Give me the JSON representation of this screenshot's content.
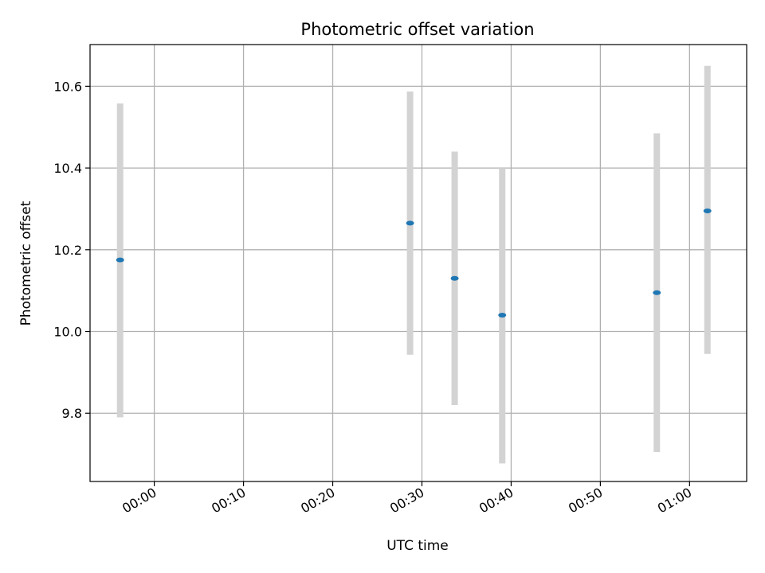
{
  "chart_data": {
    "type": "scatter",
    "title": "Photometric offset variation",
    "xlabel": "UTC time",
    "ylabel": "Photometric offset",
    "x_tick_labels": [
      "00:00",
      "00:10",
      "00:20",
      "00:30",
      "00:40",
      "00:50",
      "01:00"
    ],
    "x_tick_minutes": [
      0,
      10,
      20,
      30,
      40,
      50,
      60
    ],
    "xlim_minutes": [
      -7.2,
      66.4
    ],
    "y_tick_labels": [
      "9.8",
      "10.0",
      "10.2",
      "10.4",
      "10.6"
    ],
    "y_tick_values": [
      9.8,
      10.0,
      10.2,
      10.4,
      10.6
    ],
    "ylim": [
      9.633,
      10.702
    ],
    "grid": true,
    "points": [
      {
        "time": "23:56:10",
        "minutes": -3.83,
        "y": 10.175,
        "yerr_low": 9.79,
        "yerr_high": 10.558
      },
      {
        "time": "00:28:40",
        "minutes": 28.67,
        "y": 10.265,
        "yerr_low": 9.943,
        "yerr_high": 10.587
      },
      {
        "time": "00:33:40",
        "minutes": 33.67,
        "y": 10.13,
        "yerr_low": 9.82,
        "yerr_high": 10.44
      },
      {
        "time": "00:39:00",
        "minutes": 39.0,
        "y": 10.04,
        "yerr_low": 9.677,
        "yerr_high": 10.4
      },
      {
        "time": "00:56:20",
        "minutes": 56.33,
        "y": 10.095,
        "yerr_low": 9.705,
        "yerr_high": 10.485
      },
      {
        "time": "01:02:00",
        "minutes": 62.0,
        "y": 10.295,
        "yerr_low": 9.945,
        "yerr_high": 10.65
      }
    ],
    "marker_color": "#1f77b4",
    "errorbar_color": "#d3d3d3",
    "grid_color": "#b0b0b0"
  }
}
